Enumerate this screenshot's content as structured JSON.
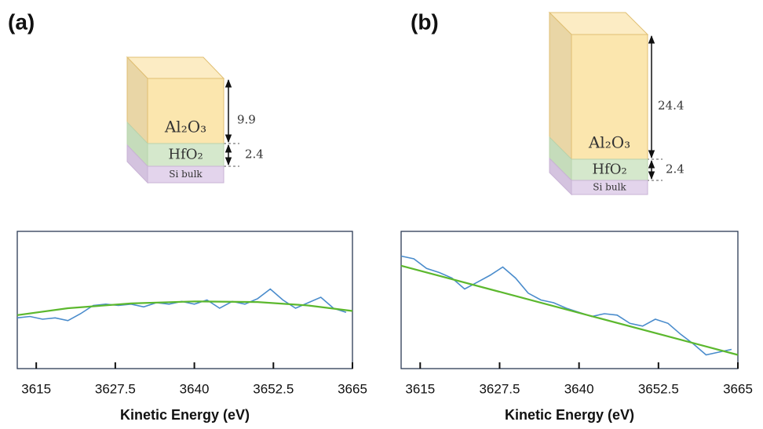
{
  "chart_data": [
    {
      "type": "line",
      "panel_label": "(a)",
      "xlabel": "Kinetic Energy (eV)",
      "xlim": [
        3612,
        3665
      ],
      "xticks": [
        3615,
        3627.5,
        3640,
        3652.5,
        3665
      ],
      "ylim": [
        0,
        100
      ],
      "series": [
        {
          "color": "#4a8ccc",
          "x": [
            3612,
            3614,
            3616,
            3618,
            3620,
            3622,
            3624,
            3626,
            3628,
            3630,
            3632,
            3634,
            3636,
            3638,
            3640,
            3642,
            3644,
            3646,
            3648,
            3650,
            3652,
            3654,
            3656,
            3658,
            3660,
            3662,
            3664
          ],
          "values": [
            37,
            38,
            36,
            37,
            35,
            40,
            46,
            47,
            46,
            47,
            45,
            48,
            47,
            49,
            47,
            50,
            44,
            49,
            47,
            51,
            58,
            50,
            44,
            48,
            52,
            44,
            41
          ]
        },
        {
          "color": "#5cb82e",
          "x": [
            3612,
            3620,
            3630,
            3640,
            3650,
            3658,
            3665
          ],
          "values": [
            39,
            44,
            47.5,
            49,
            48.5,
            46,
            42
          ]
        }
      ]
    },
    {
      "type": "line",
      "panel_label": "(b)",
      "xlabel": "Kinetic Energy (eV)",
      "xlim": [
        3612,
        3665
      ],
      "xticks": [
        3615,
        3627.5,
        3640,
        3652.5,
        3665
      ],
      "ylim": [
        0,
        100
      ],
      "series": [
        {
          "color": "#4a8ccc",
          "x": [
            3612,
            3614,
            3616,
            3618,
            3620,
            3622,
            3624,
            3626,
            3628,
            3630,
            3632,
            3634,
            3636,
            3638,
            3640,
            3642,
            3644,
            3646,
            3648,
            3650,
            3652,
            3654,
            3656,
            3658,
            3660,
            3662,
            3664
          ],
          "values": [
            82,
            80,
            73,
            70,
            66,
            58,
            63,
            68,
            74,
            66,
            55,
            50,
            48,
            44,
            41,
            38,
            40,
            39,
            33,
            31,
            36,
            33,
            25,
            18,
            10,
            12,
            14
          ]
        },
        {
          "color": "#5cb82e",
          "x": [
            3612,
            3665
          ],
          "values": [
            75,
            10
          ]
        }
      ]
    }
  ],
  "diagrams": [
    {
      "layers": [
        {
          "name": "Al₂O₃",
          "thickness": "9.9"
        },
        {
          "name": "HfO₂",
          "thickness": "2.4"
        },
        {
          "name": "Si bulk"
        }
      ]
    },
    {
      "layers": [
        {
          "name": "Al₂O₃",
          "thickness": "24.4"
        },
        {
          "name": "HfO₂",
          "thickness": "2.4"
        },
        {
          "name": "Si bulk"
        }
      ]
    }
  ]
}
